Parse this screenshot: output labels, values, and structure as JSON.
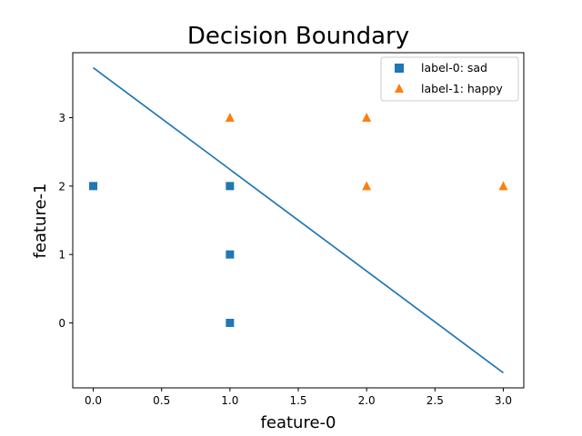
{
  "chart_data": {
    "type": "scatter",
    "title": "Decision Boundary",
    "xlabel": "feature-0",
    "ylabel": "feature-1",
    "xlim": [
      -0.15,
      3.15
    ],
    "ylim": [
      -0.95,
      3.95
    ],
    "xticks": [
      0.0,
      0.5,
      1.0,
      1.5,
      2.0,
      2.5,
      3.0
    ],
    "xtick_labels": [
      "0.0",
      "0.5",
      "1.0",
      "1.5",
      "2.0",
      "2.5",
      "3.0"
    ],
    "yticks": [
      0,
      1,
      2,
      3
    ],
    "ytick_labels": [
      "0",
      "1",
      "2",
      "3"
    ],
    "grid": false,
    "legend_position": "top-right",
    "series": [
      {
        "name": "label-0: sad",
        "marker": "square",
        "color": "#1f77b4",
        "x": [
          0,
          1,
          1,
          1
        ],
        "y": [
          2,
          2,
          1,
          0
        ]
      },
      {
        "name": "label-1: happy",
        "marker": "triangle",
        "color": "#ff7f0e",
        "x": [
          1,
          2,
          2,
          3
        ],
        "y": [
          3,
          3,
          2,
          2
        ]
      }
    ],
    "lines": [
      {
        "kind": "decision-boundary",
        "color": "#1f77b4",
        "x": [
          0,
          3
        ],
        "y": [
          3.73,
          -0.73
        ]
      }
    ]
  }
}
